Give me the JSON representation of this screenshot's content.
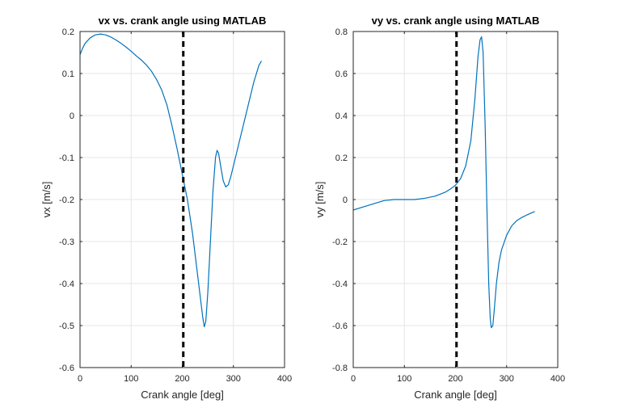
{
  "chart_data": [
    {
      "type": "line",
      "title": "vx vs. crank angle using MATLAB",
      "xlabel": "Crank angle [deg]",
      "ylabel": "vx [m/s]",
      "xlim": [
        0,
        400
      ],
      "ylim": [
        -0.6,
        0.2
      ],
      "xticks": [
        0,
        100,
        200,
        300,
        400
      ],
      "yticks": [
        -0.6,
        -0.5,
        -0.4,
        -0.3,
        -0.2,
        -0.1,
        0,
        0.1,
        0.2
      ],
      "xtick_labels": [
        "0",
        "100",
        "200",
        "300",
        "400"
      ],
      "ytick_labels": [
        "-0.6",
        "-0.5",
        "-0.4",
        "-0.3",
        "-0.2",
        "-0.1",
        "0",
        "0.1",
        "0.2"
      ],
      "grid": true,
      "vline": {
        "x": 202,
        "style": "dashed",
        "color": "#000000"
      },
      "series": [
        {
          "color": "#0072BD",
          "x": [
            0,
            5,
            10,
            20,
            30,
            40,
            50,
            60,
            70,
            80,
            90,
            100,
            110,
            120,
            130,
            140,
            150,
            160,
            170,
            180,
            190,
            200,
            210,
            220,
            225,
            230,
            235,
            240,
            243,
            246,
            250,
            255,
            260,
            265,
            268,
            271,
            275,
            280,
            285,
            290,
            295,
            300,
            310,
            320,
            330,
            340,
            350,
            355
          ],
          "y": [
            0.145,
            0.16,
            0.172,
            0.185,
            0.192,
            0.194,
            0.192,
            0.187,
            0.18,
            0.172,
            0.163,
            0.153,
            0.142,
            0.132,
            0.12,
            0.105,
            0.085,
            0.06,
            0.025,
            -0.025,
            -0.08,
            -0.14,
            -0.2,
            -0.28,
            -0.33,
            -0.38,
            -0.43,
            -0.48,
            -0.503,
            -0.49,
            -0.42,
            -0.3,
            -0.18,
            -0.1,
            -0.083,
            -0.09,
            -0.12,
            -0.155,
            -0.17,
            -0.165,
            -0.145,
            -0.12,
            -0.07,
            -0.02,
            0.03,
            0.08,
            0.12,
            0.13
          ]
        }
      ]
    },
    {
      "type": "line",
      "title": "vy vs. crank angle using MATLAB",
      "xlabel": "Crank angle [deg]",
      "ylabel": "vy [m/s]",
      "xlim": [
        0,
        400
      ],
      "ylim": [
        -0.8,
        0.8
      ],
      "xticks": [
        0,
        100,
        200,
        300,
        400
      ],
      "yticks": [
        -0.8,
        -0.6,
        -0.4,
        -0.2,
        0,
        0.2,
        0.4,
        0.6,
        0.8
      ],
      "xtick_labels": [
        "0",
        "100",
        "200",
        "300",
        "400"
      ],
      "ytick_labels": [
        "-0.8",
        "-0.6",
        "-0.4",
        "-0.2",
        "0",
        "0.2",
        "0.4",
        "0.6",
        "0.8"
      ],
      "grid": true,
      "vline": {
        "x": 202,
        "style": "dashed",
        "color": "#000000"
      },
      "series": [
        {
          "color": "#0072BD",
          "x": [
            0,
            20,
            40,
            60,
            80,
            100,
            120,
            140,
            160,
            180,
            190,
            200,
            210,
            220,
            230,
            238,
            244,
            248,
            251,
            254,
            258,
            262,
            265,
            268,
            270,
            273,
            276,
            280,
            285,
            290,
            300,
            310,
            320,
            330,
            340,
            355
          ],
          "y": [
            -0.05,
            -0.035,
            -0.02,
            -0.005,
            0.0,
            0.0,
            0.0,
            0.006,
            0.016,
            0.035,
            0.05,
            0.068,
            0.1,
            0.16,
            0.28,
            0.48,
            0.68,
            0.76,
            0.775,
            0.7,
            0.35,
            -0.1,
            -0.4,
            -0.57,
            -0.61,
            -0.6,
            -0.52,
            -0.4,
            -0.3,
            -0.24,
            -0.17,
            -0.125,
            -0.1,
            -0.085,
            -0.073,
            -0.057
          ]
        }
      ]
    }
  ]
}
